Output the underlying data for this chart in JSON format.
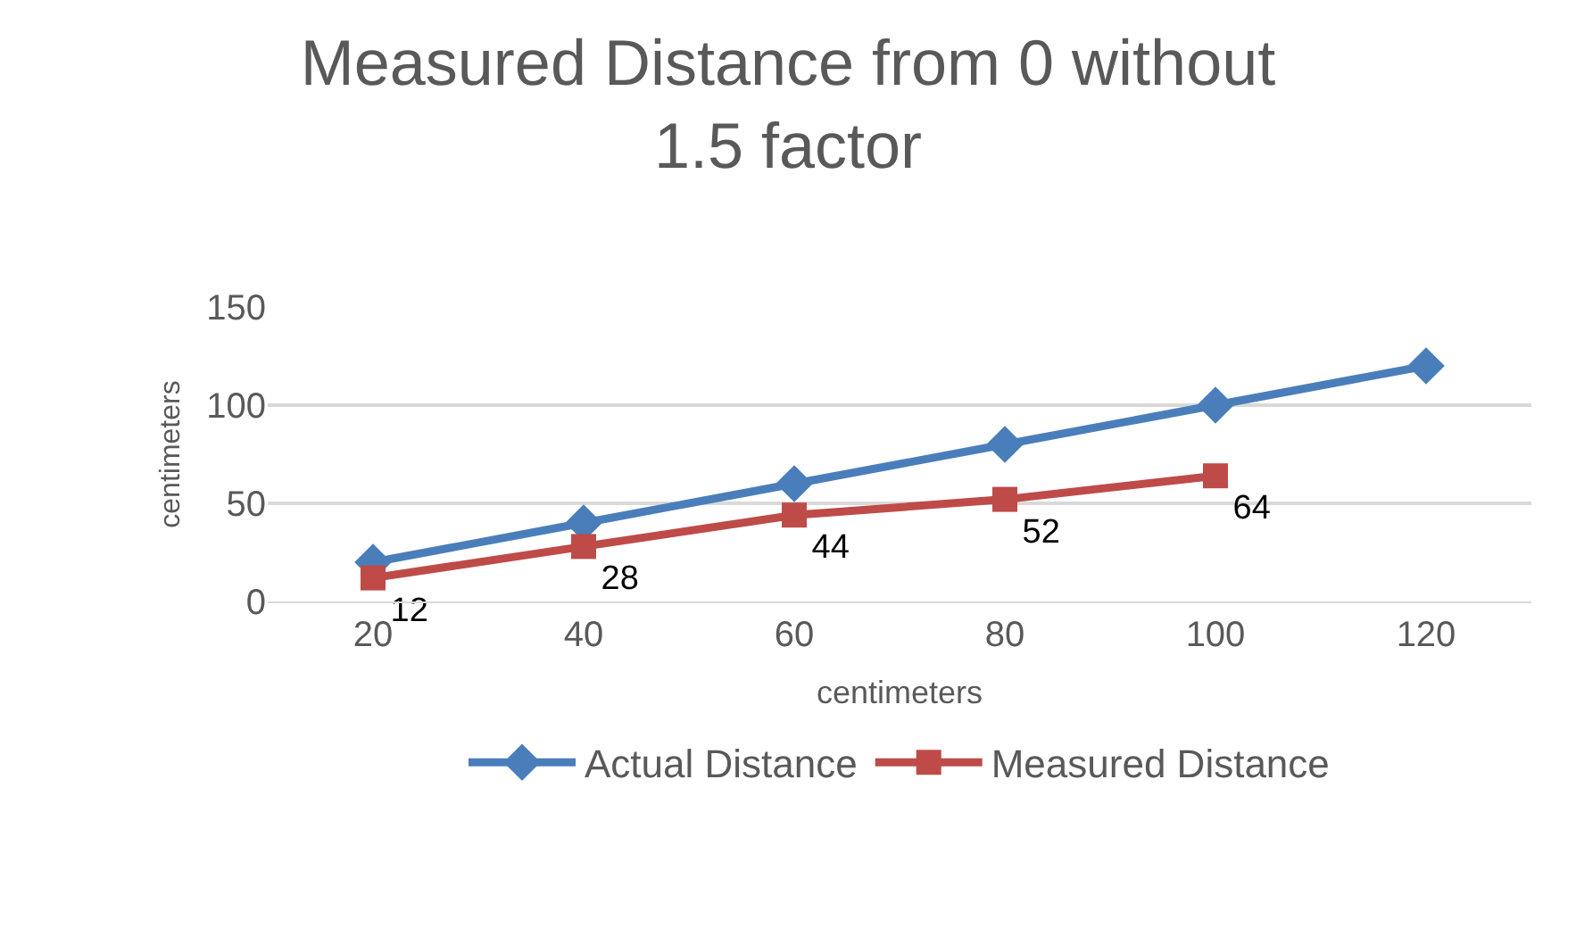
{
  "chart_data": {
    "type": "line",
    "title": "Measured Distance from 0 without 1.5 factor",
    "xlabel": "centimeters",
    "ylabel": "centimeters",
    "categories": [
      "20",
      "40",
      "60",
      "80",
      "100",
      "120"
    ],
    "series": [
      {
        "name": "Actual Distance",
        "color": "#4a7ebb",
        "marker": "diamond",
        "values": [
          20,
          40,
          60,
          80,
          100,
          120
        ]
      },
      {
        "name": "Measured Distance",
        "color": "#be4b48",
        "marker": "square",
        "values": [
          12,
          28,
          44,
          52,
          64,
          null
        ],
        "value_labels": [
          "12",
          "28",
          "44",
          "52",
          "64",
          null
        ]
      }
    ],
    "ylim": [
      0,
      150
    ],
    "yticks": [
      0,
      50,
      100,
      150
    ],
    "grid": "y",
    "legend": "bottom",
    "line_style": "solid"
  }
}
